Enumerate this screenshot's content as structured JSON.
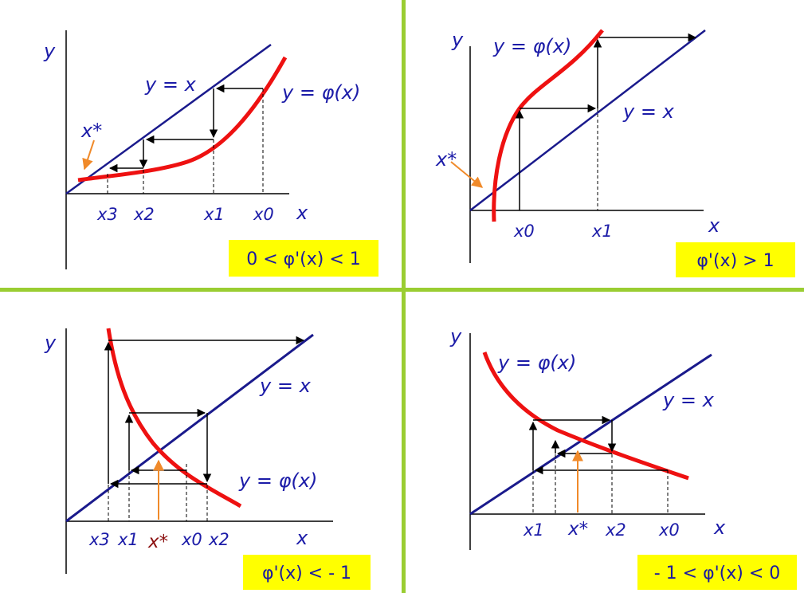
{
  "colors": {
    "divider": "#9acd32",
    "axis": "#000000",
    "identity_line": "#1a1a8c",
    "curve": "#ee1111",
    "label": "#1c1ca8",
    "fixed_point_arrow": "#f08a2a",
    "fixed_point_label_q3": "#8b1010",
    "condition_box": "#ffff00"
  },
  "panels": {
    "q1": {
      "y_axis": "y",
      "x_axis": "x",
      "identity_label": "y = x",
      "curve_label": "y = φ(x)",
      "fixed_point": "x*",
      "ticks": [
        "x3",
        "x2",
        "x1",
        "x0"
      ],
      "condition": "0 < φ'(x) < 1"
    },
    "q2": {
      "y_axis": "y",
      "x_axis": "x",
      "identity_label": "y = x",
      "curve_label": "y = φ(x)",
      "fixed_point": "x*",
      "ticks": [
        "x0",
        "x1"
      ],
      "condition": "φ'(x) > 1"
    },
    "q3": {
      "y_axis": "y",
      "x_axis": "x",
      "identity_label": "y = x",
      "curve_label": "y = φ(x)",
      "fixed_point": "x*",
      "ticks": [
        "x3",
        "x1",
        "x0",
        "x2"
      ],
      "condition": "φ'(x) < - 1"
    },
    "q4": {
      "y_axis": "y",
      "x_axis": "x",
      "identity_label": "y = x",
      "curve_label": "y = φ(x)",
      "fixed_point": "x*",
      "ticks": [
        "x1",
        "x2",
        "x0"
      ],
      "condition": "- 1 < φ'(x) < 0"
    }
  }
}
